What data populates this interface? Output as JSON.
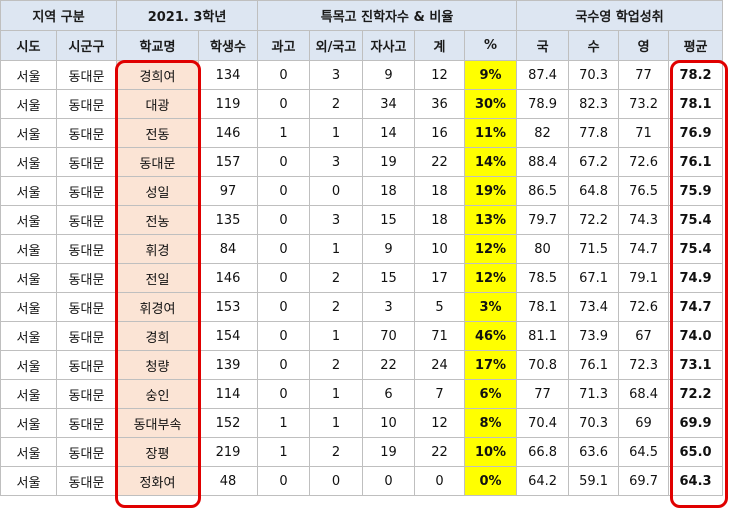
{
  "header_groups": {
    "region": "지역 구분",
    "grade": "2021. 3학년",
    "special": "특목고 진학자수 & 비율",
    "scores": "국수영 학업성취"
  },
  "columns": {
    "sido": "시도",
    "sigungu": "시군구",
    "school": "학교명",
    "students": "학생수",
    "sci": "과고",
    "foreign": "외/국고",
    "private": "자사고",
    "total": "계",
    "pct": "%",
    "kor": "국",
    "math": "수",
    "eng": "영",
    "avg": "평균"
  },
  "rows": [
    {
      "sido": "서울",
      "sigungu": "동대문",
      "school": "경희여",
      "students": "134",
      "sci": "0",
      "foreign": "3",
      "private": "9",
      "total": "12",
      "pct": "9%",
      "kor": "87.4",
      "math": "70.3",
      "eng": "77",
      "avg": "78.2"
    },
    {
      "sido": "서울",
      "sigungu": "동대문",
      "school": "대광",
      "students": "119",
      "sci": "0",
      "foreign": "2",
      "private": "34",
      "total": "36",
      "pct": "30%",
      "kor": "78.9",
      "math": "82.3",
      "eng": "73.2",
      "avg": "78.1"
    },
    {
      "sido": "서울",
      "sigungu": "동대문",
      "school": "전동",
      "students": "146",
      "sci": "1",
      "foreign": "1",
      "private": "14",
      "total": "16",
      "pct": "11%",
      "kor": "82",
      "math": "77.8",
      "eng": "71",
      "avg": "76.9"
    },
    {
      "sido": "서울",
      "sigungu": "동대문",
      "school": "동대문",
      "students": "157",
      "sci": "0",
      "foreign": "3",
      "private": "19",
      "total": "22",
      "pct": "14%",
      "kor": "88.4",
      "math": "67.2",
      "eng": "72.6",
      "avg": "76.1"
    },
    {
      "sido": "서울",
      "sigungu": "동대문",
      "school": "성일",
      "students": "97",
      "sci": "0",
      "foreign": "0",
      "private": "18",
      "total": "18",
      "pct": "19%",
      "kor": "86.5",
      "math": "64.8",
      "eng": "76.5",
      "avg": "75.9"
    },
    {
      "sido": "서울",
      "sigungu": "동대문",
      "school": "전농",
      "students": "135",
      "sci": "0",
      "foreign": "3",
      "private": "15",
      "total": "18",
      "pct": "13%",
      "kor": "79.7",
      "math": "72.2",
      "eng": "74.3",
      "avg": "75.4"
    },
    {
      "sido": "서울",
      "sigungu": "동대문",
      "school": "휘경",
      "students": "84",
      "sci": "0",
      "foreign": "1",
      "private": "9",
      "total": "10",
      "pct": "12%",
      "kor": "80",
      "math": "71.5",
      "eng": "74.7",
      "avg": "75.4"
    },
    {
      "sido": "서울",
      "sigungu": "동대문",
      "school": "전일",
      "students": "146",
      "sci": "0",
      "foreign": "2",
      "private": "15",
      "total": "17",
      "pct": "12%",
      "kor": "78.5",
      "math": "67.1",
      "eng": "79.1",
      "avg": "74.9"
    },
    {
      "sido": "서울",
      "sigungu": "동대문",
      "school": "휘경여",
      "students": "153",
      "sci": "0",
      "foreign": "2",
      "private": "3",
      "total": "5",
      "pct": "3%",
      "kor": "78.1",
      "math": "73.4",
      "eng": "72.6",
      "avg": "74.7"
    },
    {
      "sido": "서울",
      "sigungu": "동대문",
      "school": "경희",
      "students": "154",
      "sci": "0",
      "foreign": "1",
      "private": "70",
      "total": "71",
      "pct": "46%",
      "kor": "81.1",
      "math": "73.9",
      "eng": "67",
      "avg": "74.0"
    },
    {
      "sido": "서울",
      "sigungu": "동대문",
      "school": "청량",
      "students": "139",
      "sci": "0",
      "foreign": "2",
      "private": "22",
      "total": "24",
      "pct": "17%",
      "kor": "70.8",
      "math": "76.1",
      "eng": "72.3",
      "avg": "73.1"
    },
    {
      "sido": "서울",
      "sigungu": "동대문",
      "school": "숭인",
      "students": "114",
      "sci": "0",
      "foreign": "1",
      "private": "6",
      "total": "7",
      "pct": "6%",
      "kor": "77",
      "math": "71.3",
      "eng": "68.4",
      "avg": "72.2"
    },
    {
      "sido": "서울",
      "sigungu": "동대문",
      "school": "동대부속",
      "students": "152",
      "sci": "1",
      "foreign": "1",
      "private": "10",
      "total": "12",
      "pct": "8%",
      "kor": "70.4",
      "math": "70.3",
      "eng": "69",
      "avg": "69.9"
    },
    {
      "sido": "서울",
      "sigungu": "동대문",
      "school": "장평",
      "students": "219",
      "sci": "1",
      "foreign": "2",
      "private": "19",
      "total": "22",
      "pct": "10%",
      "kor": "66.8",
      "math": "63.6",
      "eng": "64.5",
      "avg": "65.0"
    },
    {
      "sido": "서울",
      "sigungu": "동대문",
      "school": "정화여",
      "students": "48",
      "sci": "0",
      "foreign": "0",
      "private": "0",
      "total": "0",
      "pct": "0%",
      "kor": "64.2",
      "math": "59.1",
      "eng": "69.7",
      "avg": "64.3"
    }
  ],
  "colors": {
    "header_bg": "#dde6f2",
    "school_bg": "#fbe4d5",
    "pct_bg": "#ffff00",
    "highlight_border": "#e00000"
  }
}
